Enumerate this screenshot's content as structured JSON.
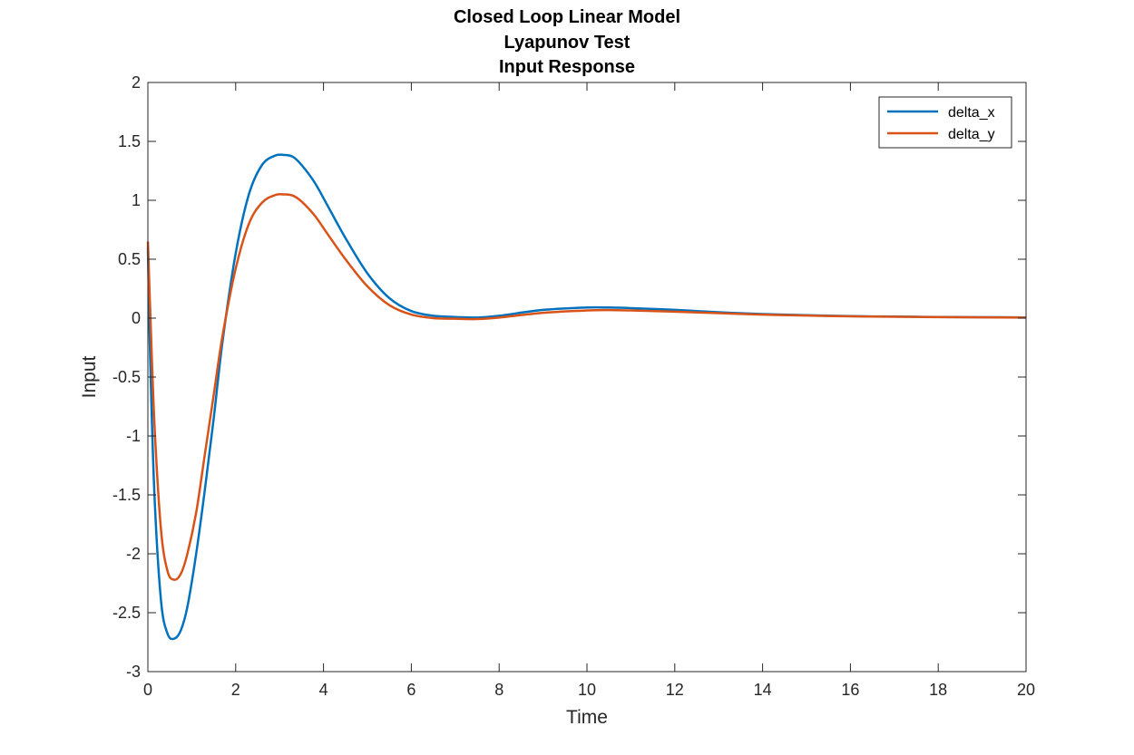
{
  "chart_data": {
    "type": "line",
    "title": [
      "Closed Loop Linear Model",
      "Lyapunov Test",
      "Input Response"
    ],
    "xlabel": "Time",
    "ylabel": "Input",
    "xlim": [
      0,
      20
    ],
    "ylim": [
      -3,
      2
    ],
    "xticks": [
      0,
      2,
      4,
      6,
      8,
      10,
      12,
      14,
      16,
      18,
      20
    ],
    "yticks": [
      -3,
      -2.5,
      -2,
      -1.5,
      -1,
      -0.5,
      0,
      0.5,
      1,
      1.5,
      2
    ],
    "grid": false,
    "legend_position": "top-right",
    "series": [
      {
        "name": "delta_x",
        "color": "#0072BD",
        "x": [
          0,
          0.05,
          0.15,
          0.3,
          0.45,
          0.6,
          0.75,
          0.9,
          1.1,
          1.3,
          1.5,
          1.7,
          2.0,
          2.3,
          2.6,
          2.9,
          3.1,
          3.3,
          3.5,
          3.8,
          4.1,
          4.5,
          5.0,
          5.5,
          6.0,
          6.5,
          7.0,
          7.5,
          8.0,
          9.0,
          10.0,
          10.5,
          11.0,
          12.0,
          13.0,
          14.0,
          15.0,
          16.0,
          17.0,
          18.0,
          19.0,
          20.0
        ],
        "y": [
          0.6,
          -0.3,
          -1.5,
          -2.4,
          -2.68,
          -2.72,
          -2.65,
          -2.45,
          -2.0,
          -1.45,
          -0.85,
          -0.2,
          0.55,
          1.05,
          1.3,
          1.38,
          1.385,
          1.37,
          1.3,
          1.15,
          0.95,
          0.68,
          0.38,
          0.17,
          0.06,
          0.02,
          0.01,
          0.005,
          0.02,
          0.07,
          0.09,
          0.09,
          0.085,
          0.07,
          0.05,
          0.035,
          0.025,
          0.017,
          0.013,
          0.01,
          0.008,
          0.006
        ]
      },
      {
        "name": "delta_y",
        "color": "#D95319",
        "x": [
          0,
          0.05,
          0.15,
          0.3,
          0.45,
          0.6,
          0.75,
          0.9,
          1.1,
          1.3,
          1.5,
          1.7,
          2.0,
          2.3,
          2.6,
          2.9,
          3.1,
          3.3,
          3.5,
          3.8,
          4.1,
          4.5,
          5.0,
          5.5,
          6.0,
          6.5,
          7.0,
          7.5,
          8.0,
          9.0,
          10.0,
          10.5,
          11.0,
          12.0,
          13.0,
          14.0,
          15.0,
          16.0,
          17.0,
          18.0,
          19.0,
          20.0
        ],
        "y": [
          0.65,
          0.1,
          -0.9,
          -1.8,
          -2.15,
          -2.22,
          -2.17,
          -2.0,
          -1.65,
          -1.15,
          -0.65,
          -0.15,
          0.42,
          0.8,
          0.98,
          1.045,
          1.05,
          1.04,
          0.99,
          0.87,
          0.71,
          0.5,
          0.27,
          0.11,
          0.03,
          0.0,
          -0.005,
          -0.008,
          0.005,
          0.045,
          0.065,
          0.068,
          0.065,
          0.055,
          0.042,
          0.03,
          0.022,
          0.015,
          0.012,
          0.009,
          0.007,
          0.005
        ]
      }
    ]
  }
}
